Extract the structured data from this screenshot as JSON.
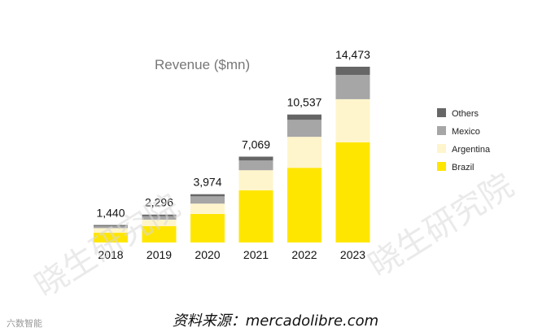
{
  "chart_data": {
    "type": "bar",
    "stacked": true,
    "title": "Revenue ($mn)",
    "categories": [
      "2018",
      "2019",
      "2020",
      "2021",
      "2022",
      "2023"
    ],
    "totals": [
      "1,440",
      "2,296",
      "3,974",
      "7,069",
      "10,537",
      "14,473"
    ],
    "series": [
      {
        "name": "Brazil",
        "color": "#FFE600",
        "values": [
          800,
          1350,
          2350,
          4300,
          6150,
          8250
        ]
      },
      {
        "name": "Argentina",
        "color": "#FFF5CC",
        "values": [
          380,
          530,
          850,
          1650,
          2550,
          3550
        ]
      },
      {
        "name": "Mexico",
        "color": "#A6A6A6",
        "values": [
          170,
          280,
          600,
          800,
          1400,
          2000
        ]
      },
      {
        "name": "Others",
        "color": "#666666",
        "values": [
          90,
          136,
          174,
          319,
          437,
          673
        ]
      }
    ],
    "legend_position": "right",
    "grid": false
  },
  "watermark": "晓生研究院",
  "source": "资料来源：mercadolibre.com",
  "brand": "六数智能"
}
